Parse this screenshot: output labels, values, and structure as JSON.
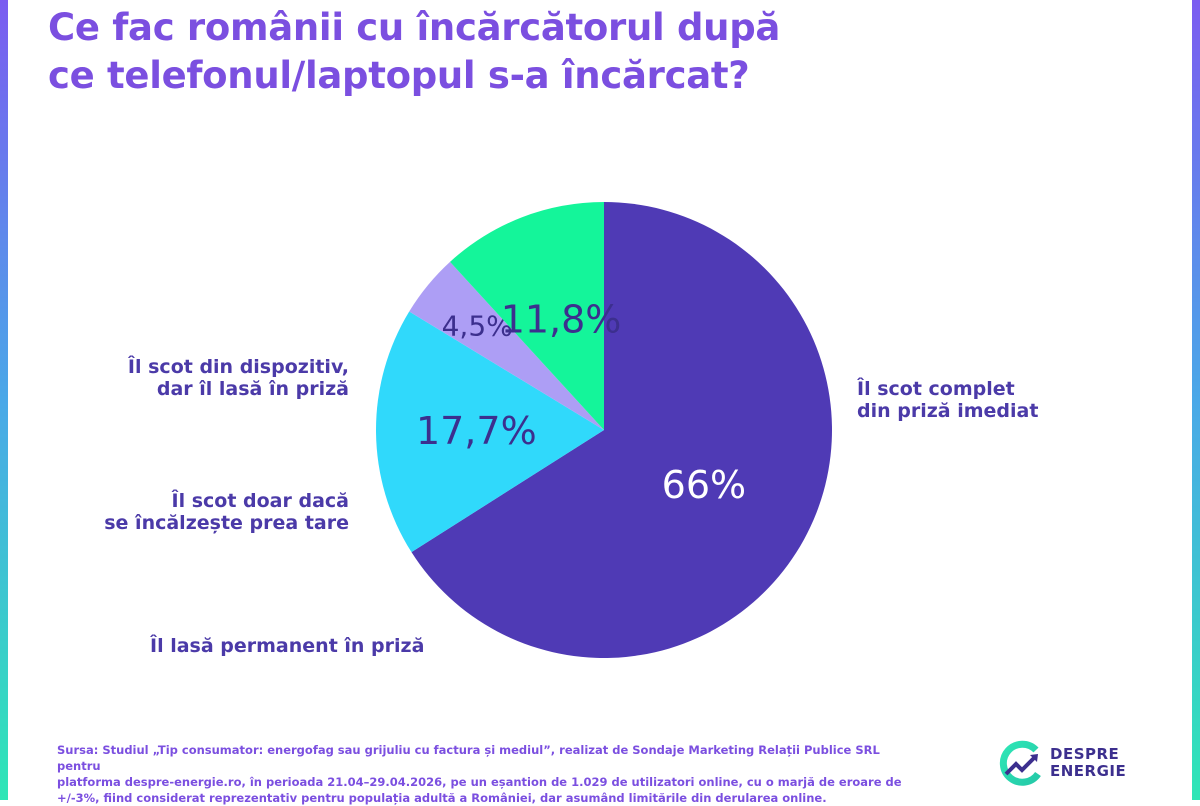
{
  "title": {
    "line1": "Ce fac românii cu încărcătorul după",
    "line2": "ce telefonul/laptopul s-a încărcat?"
  },
  "chart_data": {
    "type": "pie",
    "title": "Ce fac românii cu încărcătorul după ce telefonul/laptopul s-a încărcat?",
    "slices": [
      {
        "label_line1": "Îl scot complet",
        "label_line2": "din priză imediat",
        "value": 66,
        "value_label": "66%",
        "color": "#4f3ab5",
        "text_color": "#ffffff"
      },
      {
        "label_line1": "Îl lasă permanent în priză",
        "label_line2": "",
        "value": 17.7,
        "value_label": "17,7%",
        "color": "#30d9fb",
        "text_color": "#3c2f8e"
      },
      {
        "label_line1": "Îl scot doar dacă",
        "label_line2": "se încălzește prea tare",
        "value": 4.5,
        "value_label": "4,5%",
        "color": "#ad9ef5",
        "text_color": "#3c2f8e"
      },
      {
        "label_line1": "Îl scot din dispozitiv,",
        "label_line2": "dar îl lasă în priză",
        "value": 11.8,
        "value_label": "11,8%",
        "color": "#14f59a",
        "text_color": "#3c2f8e"
      }
    ]
  },
  "source": {
    "line1": "Sursa: Studiul „Tip consumator: energofag sau grijuliu cu factura și mediul”, realizat de Sondaje Marketing Relații Publice SRL pentru",
    "line2": "platforma despre-energie.ro, în perioada 21.04–29.04.2026, pe un eșantion de 1.029 de utilizatori online, cu o marjă de eroare de",
    "line3": "+/-3%, fiind considerat reprezentativ pentru populația adultă a României, dar asumând limitările din derularea online."
  },
  "logo": {
    "line1": "DESPRE",
    "line2": "ENERGIE",
    "icon": "despre-energie-logo-icon",
    "colors": {
      "ring_start": "#2ee6b6",
      "ring_end": "#3c2f8e"
    }
  },
  "colors": {
    "title": "#7b4fe0",
    "category_text": "#4b3aa8",
    "edge_gradient": [
      "#7b5cf0",
      "#4aa8e8",
      "#2ee6b6"
    ]
  }
}
